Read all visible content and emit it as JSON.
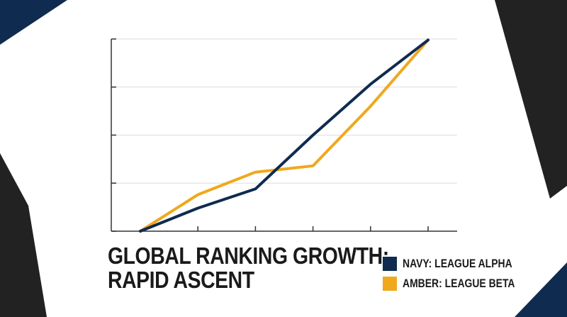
{
  "theme": {
    "navy": "#0f2b4f",
    "amber": "#f0a81c",
    "dark": "#222222",
    "grid": "#dddddd",
    "axis": "#333333"
  },
  "chart_data": {
    "type": "line",
    "title": "GLOBAL RANKING GROWTH: RAPID ASCENT",
    "title_lines": [
      "GLOBAL RANKING GROWTH:",
      "RAPID ASCENT"
    ],
    "x": [
      0,
      1,
      2,
      3,
      4,
      5
    ],
    "ylim": [
      0,
      4
    ],
    "grid": true,
    "legend_position": "bottom-right",
    "series": [
      {
        "name": "NAVY: LEAGUE ALPHA",
        "color": "#0f2b4f",
        "values": [
          0,
          0.48,
          0.88,
          2.0,
          3.06,
          3.98
        ]
      },
      {
        "name": "AMBER: LEAGUE BETA",
        "color": "#f0a81c",
        "values": [
          0,
          0.76,
          1.23,
          1.36,
          2.6,
          3.98
        ]
      }
    ]
  }
}
